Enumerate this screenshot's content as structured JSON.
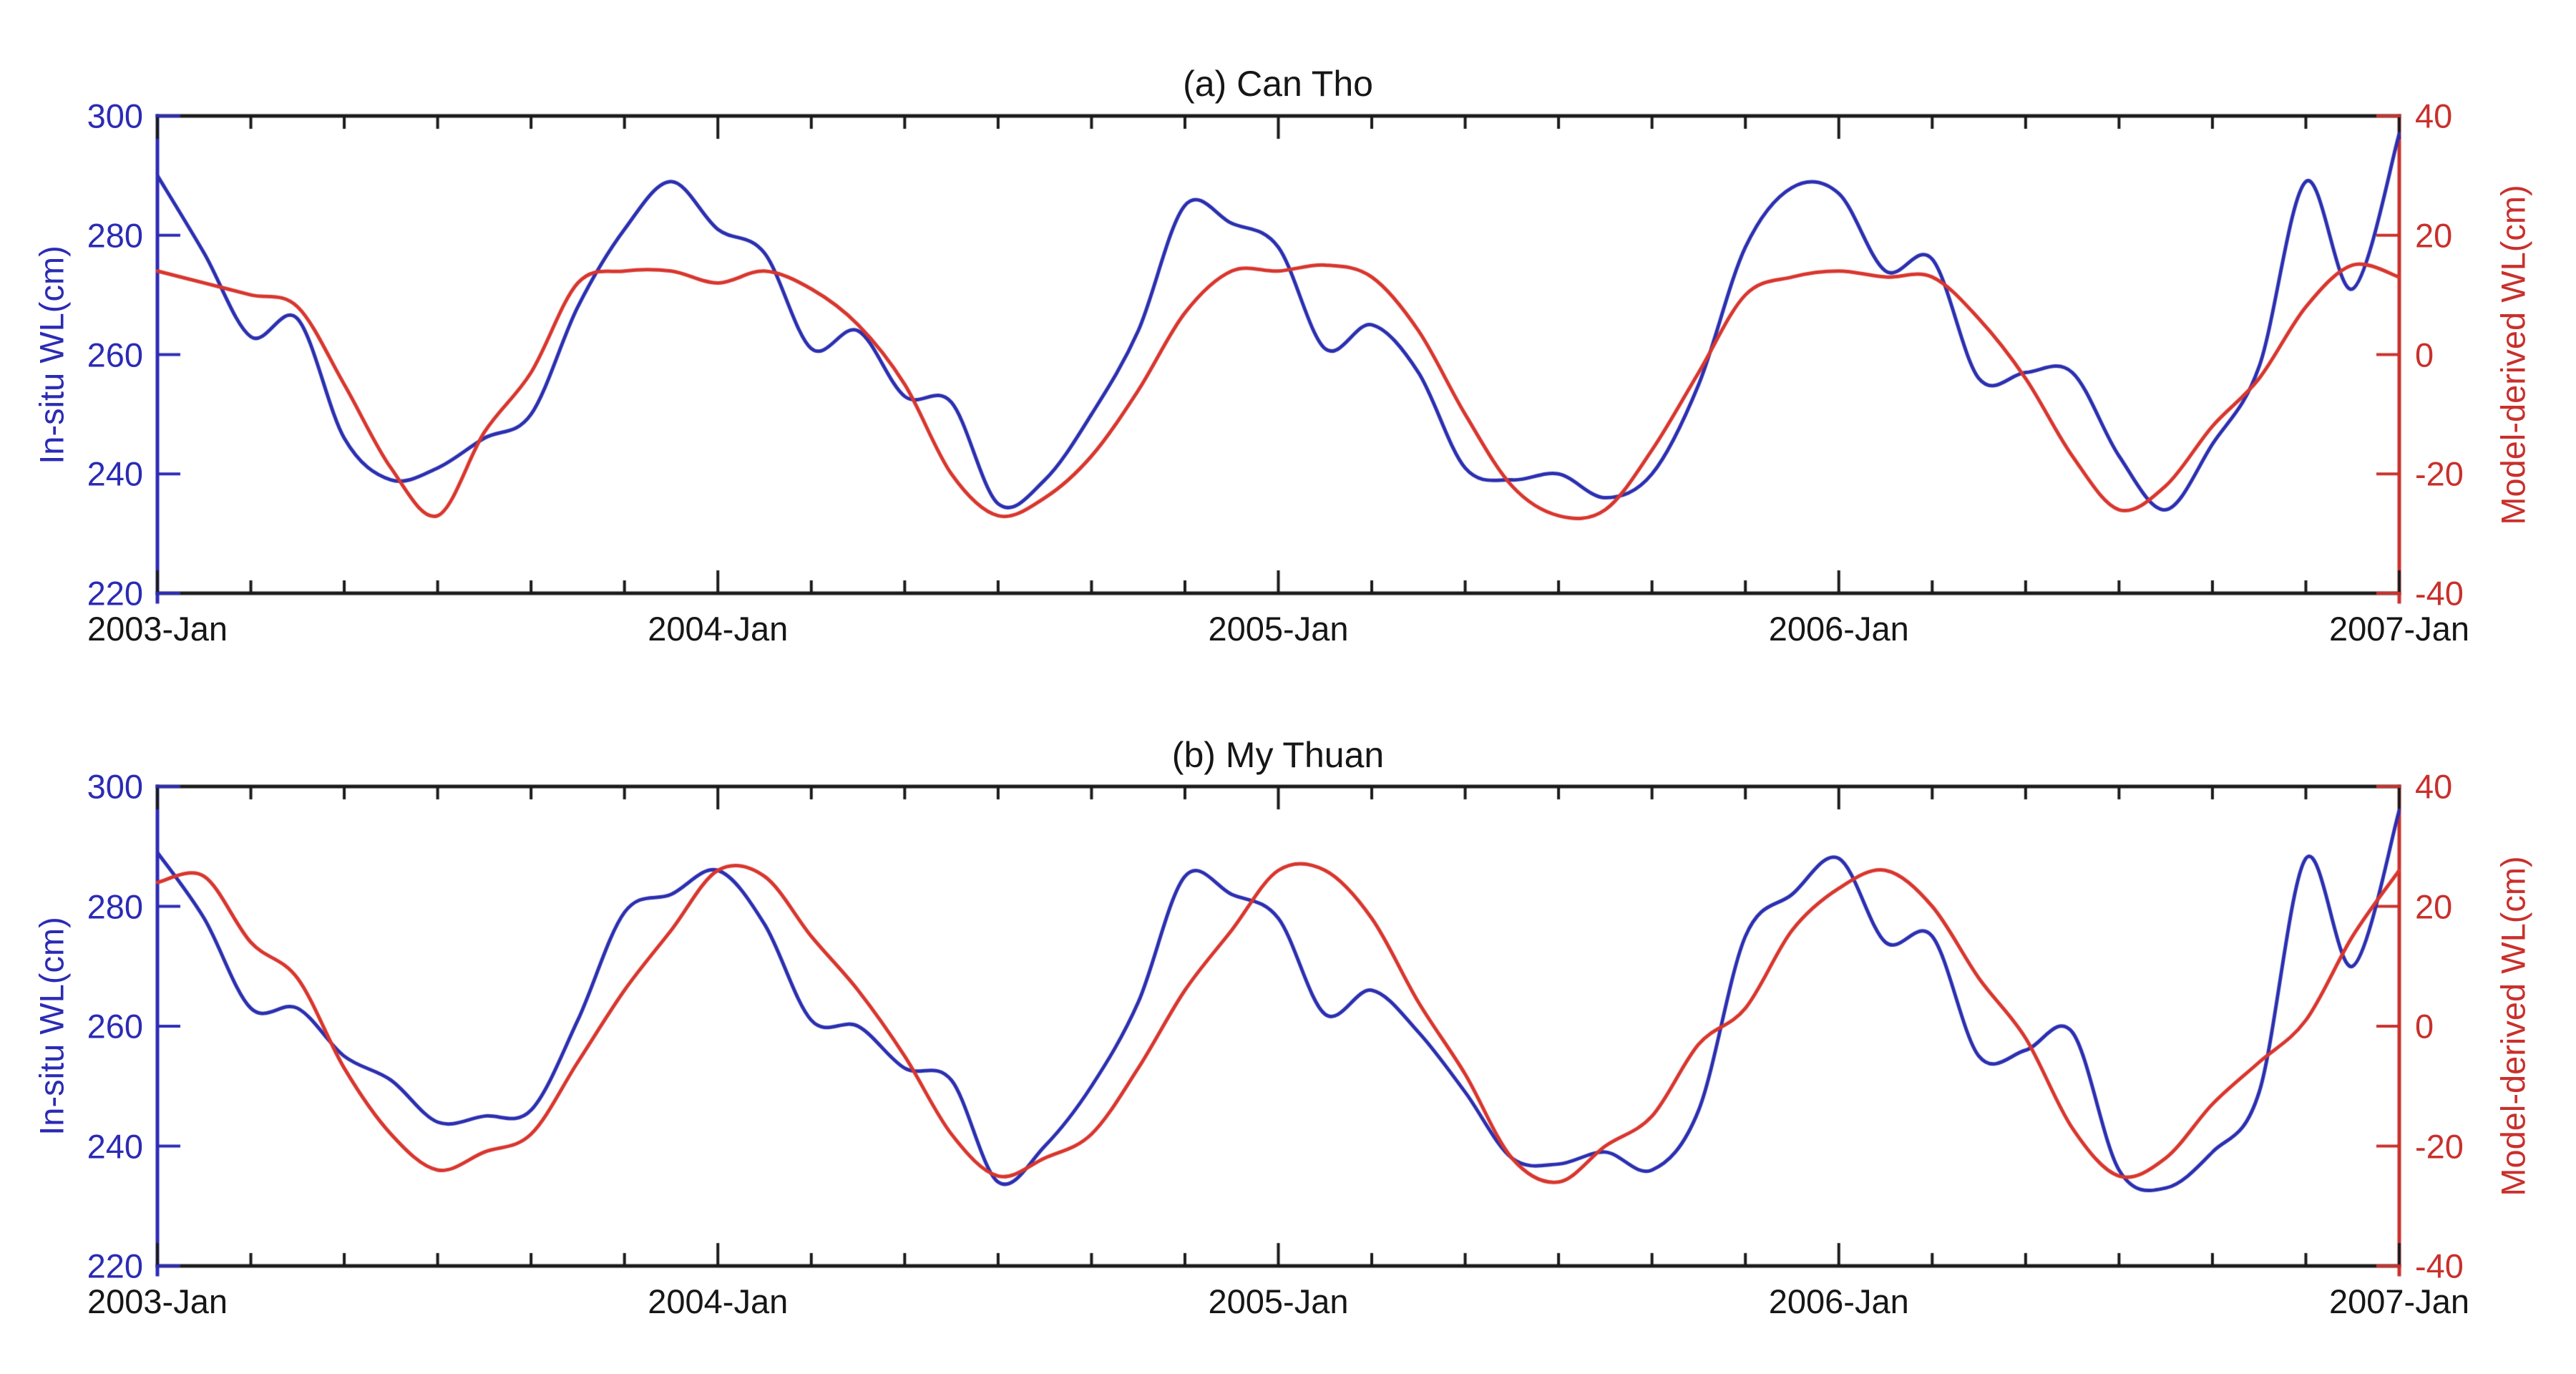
{
  "chart_data": [
    {
      "type": "line",
      "panel": "a",
      "title": "(a) Can Tho",
      "x": {
        "tick_labels": [
          "2003-Jan",
          "2004-Jan",
          "2005-Jan",
          "2006-Jan",
          "2007-Jan"
        ],
        "start": "2003-Jan",
        "end": "2007-Jan",
        "n_points": 49,
        "step_months": 1,
        "major_tick_every_months": 12,
        "minor_tick_every_months": 2
      },
      "y_left": {
        "label": "In-situ WL(cm)",
        "ticks": [
          300,
          280,
          260,
          240,
          220
        ],
        "range": [
          220,
          300
        ],
        "color": "#2B2BB5"
      },
      "y_right": {
        "label": "Model-derived WL(cm)",
        "ticks": [
          40,
          20,
          0,
          -20,
          -40
        ],
        "range": [
          -40,
          40
        ],
        "color": "#C9302C"
      },
      "grid": false,
      "legend": "none",
      "series": [
        {
          "name": "In-situ WL(cm)",
          "axis": "left",
          "color": "#2B2FB0",
          "monthly_values": [
            290,
            277,
            263,
            266,
            246,
            239,
            241,
            246,
            250,
            268,
            281,
            289,
            281,
            277,
            261,
            264,
            253,
            252,
            235,
            239,
            250,
            264,
            285,
            282,
            278,
            261,
            265,
            257,
            241,
            239,
            240,
            236,
            240,
            255,
            278,
            288,
            287,
            274,
            276,
            256,
            257,
            257,
            243,
            234,
            245,
            258,
            289,
            271,
            297
          ]
        },
        {
          "name": "Model-derived WL(cm)",
          "axis": "right",
          "color": "#D8362E",
          "monthly_values": [
            14,
            12,
            10,
            8,
            -5,
            -19,
            -27,
            -13,
            -3,
            12,
            14,
            14,
            12,
            14,
            11,
            5,
            -5,
            -20,
            -27,
            -24,
            -17,
            -6,
            7,
            14,
            14,
            15,
            13,
            4,
            -10,
            -22,
            -27,
            -26,
            -16,
            -3,
            10,
            13,
            14,
            13,
            13,
            6,
            -4,
            -17,
            -26,
            -22,
            -12,
            -4,
            8,
            15,
            13
          ]
        }
      ]
    },
    {
      "type": "line",
      "panel": "b",
      "title": "(b) My Thuan",
      "x": {
        "tick_labels": [
          "2003-Jan",
          "2004-Jan",
          "2005-Jan",
          "2006-Jan",
          "2007-Jan"
        ],
        "start": "2003-Jan",
        "end": "2007-Jan",
        "n_points": 49,
        "step_months": 1,
        "major_tick_every_months": 12,
        "minor_tick_every_months": 2
      },
      "y_left": {
        "label": "In-situ WL(cm)",
        "ticks": [
          300,
          280,
          260,
          240,
          220
        ],
        "range": [
          220,
          300
        ],
        "color": "#2B2BB5"
      },
      "y_right": {
        "label": "Model-derived WL(cm)",
        "ticks": [
          40,
          20,
          0,
          -20,
          -40
        ],
        "range": [
          -40,
          40
        ],
        "color": "#C9302C"
      },
      "grid": false,
      "legend": "none",
      "series": [
        {
          "name": "In-situ WL(cm)",
          "axis": "left",
          "color": "#2B2FB0",
          "monthly_values": [
            289,
            278,
            263,
            263,
            255,
            251,
            244,
            245,
            246,
            261,
            279,
            282,
            286,
            277,
            261,
            260,
            253,
            251,
            234,
            240,
            250,
            264,
            285,
            282,
            278,
            262,
            266,
            259,
            249,
            238,
            237,
            239,
            236,
            246,
            275,
            282,
            288,
            274,
            275,
            255,
            256,
            259,
            236,
            233,
            239,
            249,
            288,
            270,
            296
          ]
        },
        {
          "name": "Model-derived WL(cm)",
          "axis": "right",
          "color": "#D8362E",
          "monthly_values": [
            24,
            25,
            14,
            8,
            -7,
            -18,
            -24,
            -21,
            -18,
            -6,
            6,
            16,
            26,
            25,
            15,
            6,
            -5,
            -18,
            -25,
            -22,
            -18,
            -7,
            6,
            16,
            26,
            26,
            18,
            4,
            -8,
            -22,
            -26,
            -20,
            -15,
            -3,
            3,
            16,
            23,
            26,
            20,
            8,
            -2,
            -17,
            -25,
            -22,
            -13,
            -6,
            1,
            15,
            26
          ]
        }
      ]
    }
  ]
}
